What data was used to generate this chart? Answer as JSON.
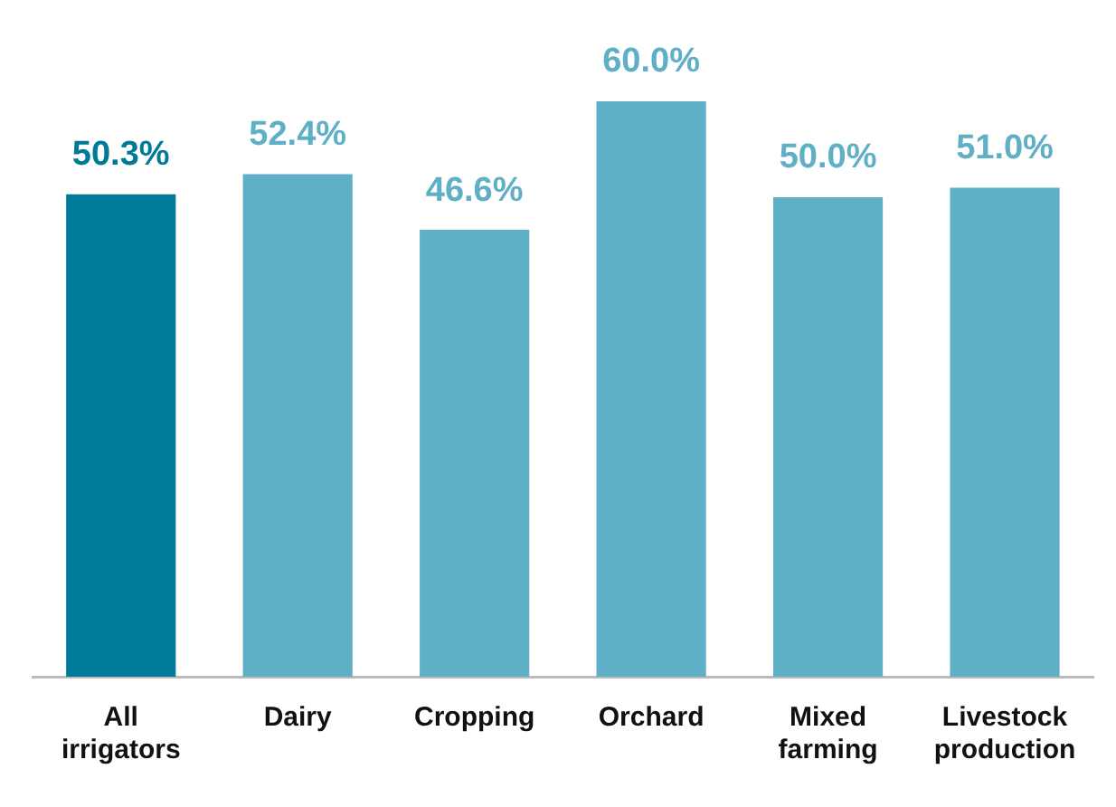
{
  "chart_data": {
    "type": "bar",
    "categories": [
      "All irrigators",
      "Dairy",
      "Cropping",
      "Orchard",
      "Mixed farming",
      "Livestock production"
    ],
    "values": [
      50.3,
      52.4,
      46.6,
      60.0,
      50.0,
      51.0
    ],
    "colors": [
      "#007a99",
      "#5fafc6",
      "#5fafc6",
      "#5fafc6",
      "#5fafc6",
      "#5fafc6"
    ],
    "value_labels": [
      "50.3%",
      "52.4%",
      "46.6%",
      "60.0%",
      "50.0%",
      "51.0%"
    ],
    "ylim": [
      0,
      60
    ],
    "grid": false,
    "legend": false
  }
}
